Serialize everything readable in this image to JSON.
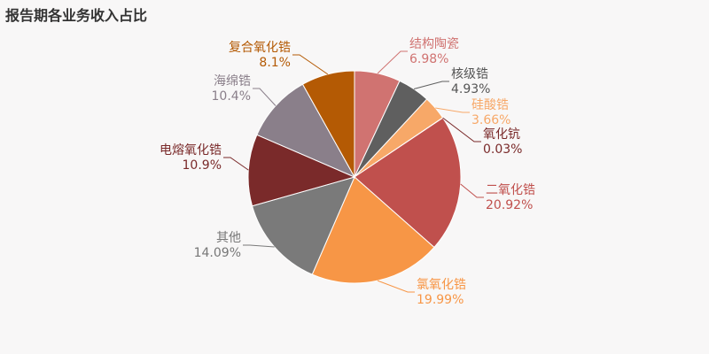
{
  "chart_data": {
    "type": "pie",
    "title": "报告期各业务收入占比",
    "start_angle_deg": 0,
    "direction": "clockwise",
    "slices": [
      {
        "label": "结构陶瓷",
        "value": 6.98,
        "value_text": "6.98%",
        "color": "#d07371"
      },
      {
        "label": "核级锆",
        "value": 4.93,
        "value_text": "4.93%",
        "color": "#5f5f5f"
      },
      {
        "label": "硅酸锆",
        "value": 3.66,
        "value_text": "3.66%",
        "color": "#f7a868"
      },
      {
        "label": "氧化钪",
        "value": 0.03,
        "value_text": "0.03%",
        "color": "#7a2a2a"
      },
      {
        "label": "二氧化锆",
        "value": 20.92,
        "value_text": "20.92%",
        "color": "#c0504d"
      },
      {
        "label": "氯氧化锆",
        "value": 19.99,
        "value_text": "19.99%",
        "color": "#f79646"
      },
      {
        "label": "其他",
        "value": 14.09,
        "value_text": "14.09%",
        "color": "#7a7a7a"
      },
      {
        "label": "电熔氧化锆",
        "value": 10.9,
        "value_text": "10.9%",
        "color": "#7a2a2a"
      },
      {
        "label": "海绵锆",
        "value": 10.4,
        "value_text": "10.4%",
        "color": "#8a7f8a"
      },
      {
        "label": "复合氧化锆",
        "value": 8.1,
        "value_text": "8.1%",
        "color": "#b45a04"
      }
    ]
  }
}
